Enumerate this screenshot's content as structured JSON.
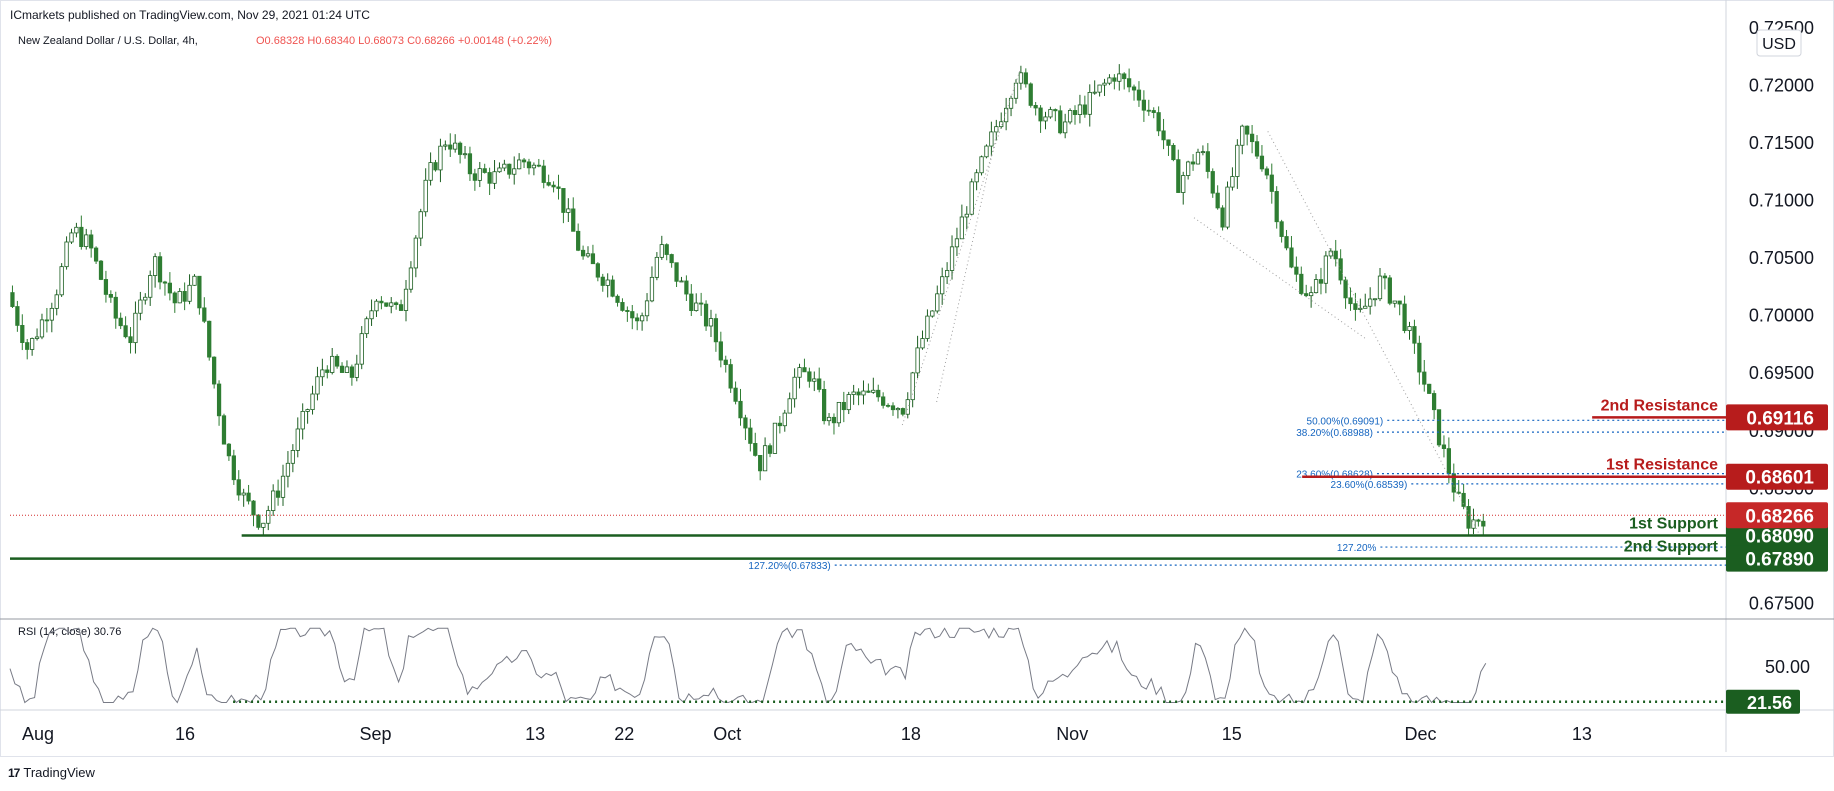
{
  "header": {
    "published": "ICmarkets published on TradingView.com, Nov 29, 2021 01:24 UTC"
  },
  "footer": {
    "logo_text": "TradingView",
    "logo_mark": "17"
  },
  "chart_data": {
    "type": "candlestick",
    "instrument": "New Zealand Dollar / U.S. Dollar, 4h,",
    "ohlc_label": "O0.68328 H0.68340 L0.68073 C0.68266 +0.00148 (+0.22%)",
    "currency": "USD",
    "y_ticks": [
      "0.72500",
      "0.72000",
      "0.71500",
      "0.71000",
      "0.70500",
      "0.70000",
      "0.69500",
      "0.69000",
      "0.68500",
      "0.68000",
      "0.67500"
    ],
    "ylim": [
      0.674,
      0.7255
    ],
    "x_ticks": [
      "Aug",
      "16",
      "Sep",
      "13",
      "22",
      "Oct",
      "18",
      "Nov",
      "15",
      "Dec",
      "13"
    ],
    "price_path": [
      [
        0,
        0.702
      ],
      [
        0.012,
        0.697
      ],
      [
        0.028,
        0.702
      ],
      [
        0.038,
        0.7075
      ],
      [
        0.048,
        0.706
      ],
      [
        0.062,
        0.7
      ],
      [
        0.072,
        0.698
      ],
      [
        0.085,
        0.705
      ],
      [
        0.098,
        0.701
      ],
      [
        0.11,
        0.703
      ],
      [
        0.118,
        0.696
      ],
      [
        0.128,
        0.688
      ],
      [
        0.138,
        0.684
      ],
      [
        0.148,
        0.682
      ],
      [
        0.158,
        0.685
      ],
      [
        0.17,
        0.69
      ],
      [
        0.185,
        0.696
      ],
      [
        0.2,
        0.6945
      ],
      [
        0.215,
        0.702
      ],
      [
        0.228,
        0.7
      ],
      [
        0.245,
        0.712
      ],
      [
        0.256,
        0.7155
      ],
      [
        0.27,
        0.7125
      ],
      [
        0.285,
        0.712
      ],
      [
        0.3,
        0.7135
      ],
      [
        0.318,
        0.712
      ],
      [
        0.335,
        0.705
      ],
      [
        0.35,
        0.703
      ],
      [
        0.368,
        0.699
      ],
      [
        0.38,
        0.706
      ],
      [
        0.395,
        0.702
      ],
      [
        0.41,
        0.699
      ],
      [
        0.425,
        0.693
      ],
      [
        0.438,
        0.687
      ],
      [
        0.448,
        0.69
      ],
      [
        0.458,
        0.6945
      ],
      [
        0.468,
        0.695
      ],
      [
        0.478,
        0.6905
      ],
      [
        0.492,
        0.693
      ],
      [
        0.508,
        0.693
      ],
      [
        0.522,
        0.692
      ],
      [
        0.532,
        0.6975
      ],
      [
        0.545,
        0.703
      ],
      [
        0.56,
        0.71
      ],
      [
        0.575,
        0.716
      ],
      [
        0.588,
        0.721
      ],
      [
        0.6,
        0.718
      ],
      [
        0.615,
        0.7165
      ],
      [
        0.63,
        0.7185
      ],
      [
        0.645,
        0.721
      ],
      [
        0.66,
        0.719
      ],
      [
        0.67,
        0.717
      ],
      [
        0.682,
        0.7115
      ],
      [
        0.695,
        0.7145
      ],
      [
        0.708,
        0.7085
      ],
      [
        0.72,
        0.716
      ],
      [
        0.733,
        0.713
      ],
      [
        0.748,
        0.704
      ],
      [
        0.76,
        0.7015
      ],
      [
        0.772,
        0.706
      ],
      [
        0.786,
        0.6995
      ],
      [
        0.8,
        0.703
      ],
      [
        0.812,
        0.7005
      ],
      [
        0.825,
        0.6945
      ],
      [
        0.836,
        0.6885
      ],
      [
        0.845,
        0.684
      ],
      [
        0.852,
        0.682
      ],
      [
        0.86,
        0.6826
      ]
    ],
    "rsi": {
      "label": "RSI (14, close)",
      "value": "30.76",
      "tick": "50.00",
      "level": "21.56"
    },
    "levels": [
      {
        "name": "2nd Resistance",
        "value": "0.69116",
        "color": "#b71c1c"
      },
      {
        "name": "1st Resistance",
        "value": "0.68601",
        "color": "#b71c1c"
      },
      {
        "name": "1st Support",
        "value": "0.68090",
        "color": "#1b5e20"
      },
      {
        "name": "2nd Support",
        "value": "0.67890",
        "color": "#1b5e20"
      }
    ],
    "current_price": "0.68266",
    "fib_labels": [
      "50.00%(0.69091)",
      "38.20%(0.68988)",
      "23.60%(0.68628)",
      "23.60%(0.68539)",
      "127.20%",
      "127.20%(0.67833)"
    ],
    "colors": {
      "up": "#26a69a",
      "down": "#ef5350",
      "candle": "#1b5e20",
      "resistance": "#b71c1c",
      "support": "#1b5e20",
      "price_line": "#d32f2f",
      "fib": "#1565c0",
      "rsi": "#787b86"
    }
  }
}
